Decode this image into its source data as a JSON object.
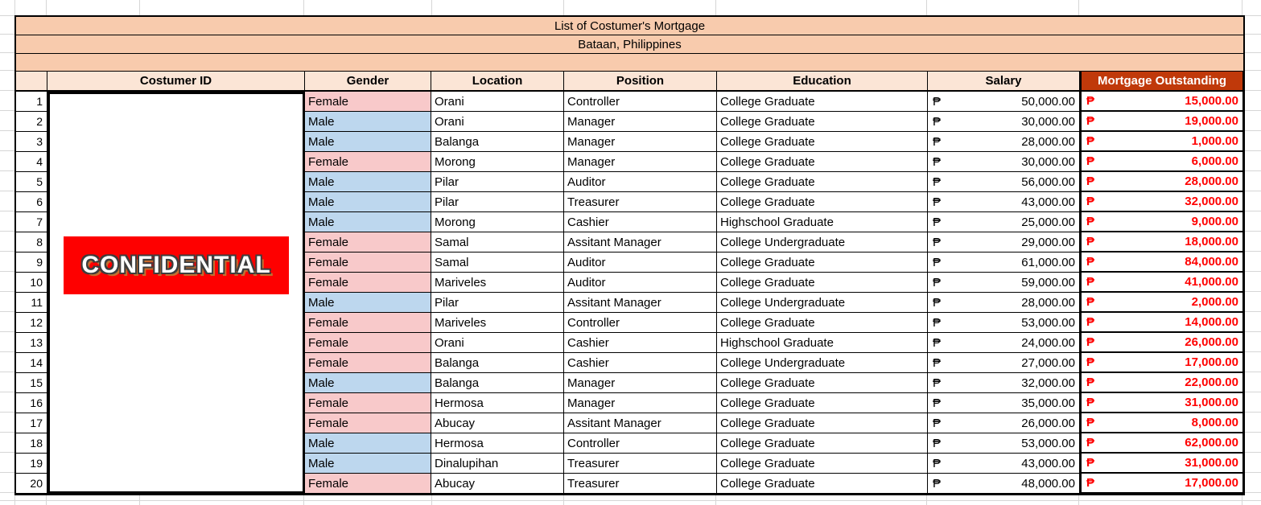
{
  "sheet": {
    "title_line1": "List of Costumer's Mortgage",
    "title_line2": "Bataan, Philippines"
  },
  "headers": {
    "customer_id": "Costumer ID",
    "gender": "Gender",
    "location": "Location",
    "position": "Position",
    "education": "Education",
    "salary": "Salary",
    "mortgage_outstanding": "Mortgage Outstanding"
  },
  "overlay": {
    "confidential_label": "CONFIDENTIAL"
  },
  "currency_symbol": "₱",
  "colors": {
    "banner_bg": "#F8CBAD",
    "column_header_bg": "#FBE5D6",
    "mortgage_header_bg": "#C0390A",
    "mortgage_header_text": "#FFFFFF",
    "male_bg": "#BDD7EE",
    "female_bg": "#F8C9CA",
    "mortgage_value_text": "#FF0000",
    "confidential_bg": "#FE0000"
  },
  "rows": [
    {
      "n": 1,
      "gender": "Female",
      "location": "Orani",
      "position": "Controller",
      "education": "College Graduate",
      "salary": "50,000.00",
      "mortgage": "15,000.00"
    },
    {
      "n": 2,
      "gender": "Male",
      "location": "Orani",
      "position": "Manager",
      "education": "College Graduate",
      "salary": "30,000.00",
      "mortgage": "19,000.00"
    },
    {
      "n": 3,
      "gender": "Male",
      "location": "Balanga",
      "position": "Manager",
      "education": "College Graduate",
      "salary": "28,000.00",
      "mortgage": "1,000.00"
    },
    {
      "n": 4,
      "gender": "Female",
      "location": "Morong",
      "position": "Manager",
      "education": "College Graduate",
      "salary": "30,000.00",
      "mortgage": "6,000.00"
    },
    {
      "n": 5,
      "gender": "Male",
      "location": "Pilar",
      "position": "Auditor",
      "education": "College Graduate",
      "salary": "56,000.00",
      "mortgage": "28,000.00"
    },
    {
      "n": 6,
      "gender": "Male",
      "location": "Pilar",
      "position": "Treasurer",
      "education": "College Graduate",
      "salary": "43,000.00",
      "mortgage": "32,000.00"
    },
    {
      "n": 7,
      "gender": "Male",
      "location": "Morong",
      "position": "Cashier",
      "education": "Highschool Graduate",
      "salary": "25,000.00",
      "mortgage": "9,000.00"
    },
    {
      "n": 8,
      "gender": "Female",
      "location": "Samal",
      "position": "Assitant Manager",
      "education": "College Undergraduate",
      "salary": "29,000.00",
      "mortgage": "18,000.00"
    },
    {
      "n": 9,
      "gender": "Female",
      "location": "Samal",
      "position": "Auditor",
      "education": "College Graduate",
      "salary": "61,000.00",
      "mortgage": "84,000.00"
    },
    {
      "n": 10,
      "gender": "Female",
      "location": "Mariveles",
      "position": "Auditor",
      "education": "College Graduate",
      "salary": "59,000.00",
      "mortgage": "41,000.00"
    },
    {
      "n": 11,
      "gender": "Male",
      "location": "Pilar",
      "position": "Assitant Manager",
      "education": "College Undergraduate",
      "salary": "28,000.00",
      "mortgage": "2,000.00"
    },
    {
      "n": 12,
      "gender": "Female",
      "location": "Mariveles",
      "position": "Controller",
      "education": "College Graduate",
      "salary": "53,000.00",
      "mortgage": "14,000.00"
    },
    {
      "n": 13,
      "gender": "Female",
      "location": "Orani",
      "position": "Cashier",
      "education": "Highschool Graduate",
      "salary": "24,000.00",
      "mortgage": "26,000.00"
    },
    {
      "n": 14,
      "gender": "Female",
      "location": "Balanga",
      "position": "Cashier",
      "education": "College Undergraduate",
      "salary": "27,000.00",
      "mortgage": "17,000.00"
    },
    {
      "n": 15,
      "gender": "Male",
      "location": "Balanga",
      "position": "Manager",
      "education": "College Graduate",
      "salary": "32,000.00",
      "mortgage": "22,000.00"
    },
    {
      "n": 16,
      "gender": "Female",
      "location": "Hermosa",
      "position": "Manager",
      "education": "College Graduate",
      "salary": "35,000.00",
      "mortgage": "31,000.00"
    },
    {
      "n": 17,
      "gender": "Female",
      "location": "Abucay",
      "position": "Assitant Manager",
      "education": "College Graduate",
      "salary": "26,000.00",
      "mortgage": "8,000.00"
    },
    {
      "n": 18,
      "gender": "Male",
      "location": "Hermosa",
      "position": "Controller",
      "education": "College Graduate",
      "salary": "53,000.00",
      "mortgage": "62,000.00"
    },
    {
      "n": 19,
      "gender": "Male",
      "location": "Dinalupihan",
      "position": "Treasurer",
      "education": "College Graduate",
      "salary": "43,000.00",
      "mortgage": "31,000.00"
    },
    {
      "n": 20,
      "gender": "Female",
      "location": "Abucay",
      "position": "Treasurer",
      "education": "College Graduate",
      "salary": "48,000.00",
      "mortgage": "17,000.00"
    }
  ]
}
